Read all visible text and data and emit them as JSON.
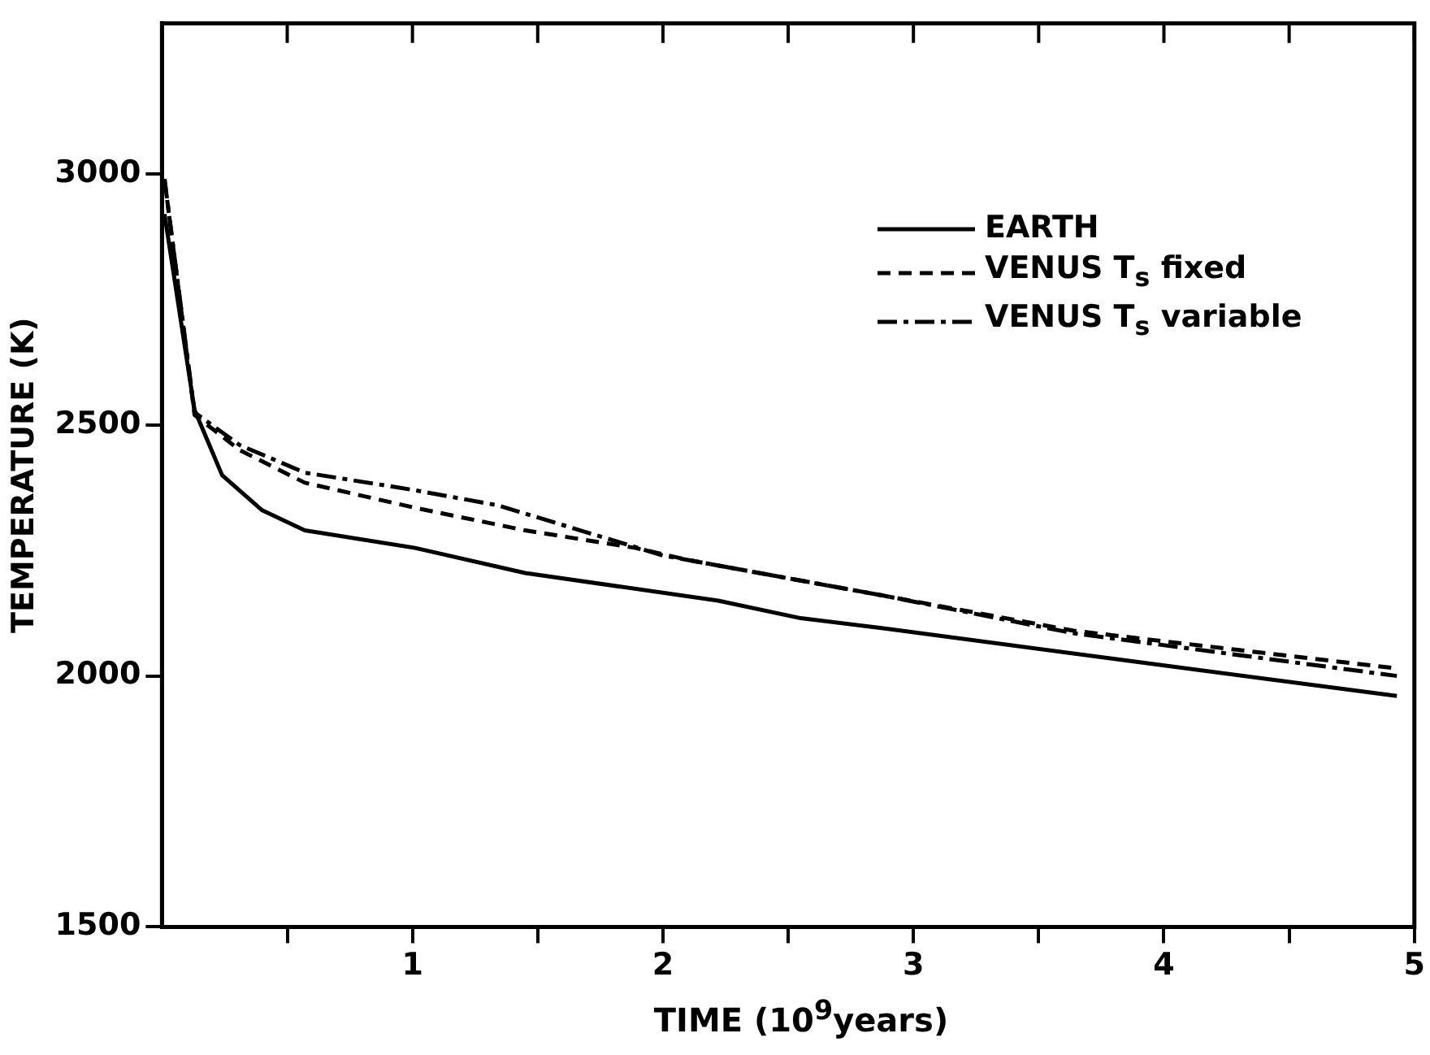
{
  "chart_data": {
    "type": "line",
    "xlabel": "TIME (10$^{9}$years)",
    "ylabel": "TEMPERATURE (K)",
    "xlim": [
      0,
      5
    ],
    "ylim": [
      1500,
      3300
    ],
    "xticks": [
      {
        "value": 0.5,
        "label": null
      },
      1,
      {
        "value": 1.5,
        "label": null
      },
      2,
      {
        "value": 2.5,
        "label": null
      },
      3,
      {
        "value": 3.5,
        "label": null
      },
      4,
      {
        "value": 4.5,
        "label": null
      },
      5
    ],
    "yticks": [
      1500,
      2000,
      2500,
      3000
    ],
    "grid": false,
    "legend": "top right",
    "marker": "none",
    "series": [
      {
        "name": "EARTH",
        "color": "#000000",
        "line_style": "solid",
        "x": [
          0.01,
          0.13,
          0.24,
          0.4,
          0.57,
          1.01,
          1.45,
          2.22,
          2.55,
          2.88,
          3.86,
          4.93
        ],
        "values": [
          2920,
          2530,
          2400,
          2330,
          2290,
          2255,
          2205,
          2150,
          2115,
          2095,
          2030,
          1960
        ]
      },
      {
        "name": "VENUS  T$_{s}$ fixed",
        "color": "#000000",
        "line_style": "dashed",
        "x": [
          0.01,
          0.13,
          0.31,
          0.57,
          1.01,
          1.45,
          1.89,
          2.11,
          2.88,
          3.64,
          4.93
        ],
        "values": [
          2990,
          2520,
          2450,
          2385,
          2335,
          2290,
          2255,
          2230,
          2160,
          2090,
          2015
        ]
      },
      {
        "name": "VENUS  T$_{s}$ variable",
        "color": "#000000",
        "line_style": "dashdot",
        "x": [
          0.01,
          0.13,
          0.31,
          0.57,
          1.01,
          1.34,
          1.67,
          2.0,
          2.88,
          3.64,
          4.93
        ],
        "values": [
          2990,
          2525,
          2460,
          2405,
          2370,
          2340,
          2290,
          2240,
          2160,
          2085,
          2000
        ]
      }
    ]
  }
}
